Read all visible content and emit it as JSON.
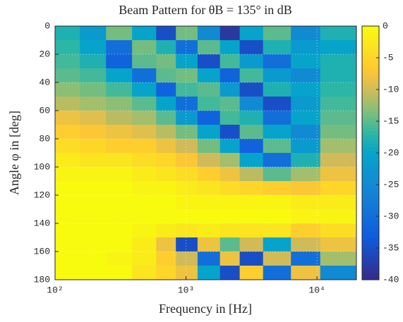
{
  "chart_data": {
    "type": "heatmap",
    "title": "Beam Pattern for θB = 135° in dB",
    "xlabel": "Frequency in [Hz]",
    "ylabel": "Angle φ in [deg]",
    "xscale": "log",
    "xlim": [
      100,
      20000
    ],
    "xticks": [
      {
        "value": 100,
        "label": "10²"
      },
      {
        "value": 1000,
        "label": "10³"
      },
      {
        "value": 10000,
        "label": "10⁴"
      }
    ],
    "ylim": [
      180,
      0
    ],
    "yticks": [
      0,
      20,
      40,
      60,
      80,
      100,
      120,
      140,
      160,
      180
    ],
    "zlim": [
      -40,
      0
    ],
    "zticks": [
      0,
      -5,
      -10,
      -15,
      -20,
      -25,
      -30,
      -35,
      -40
    ],
    "colormap": "parula",
    "grid": true,
    "x": [
      120,
      200,
      300,
      500,
      700,
      1000,
      1500,
      2200,
      3000,
      5000,
      8000,
      14000
    ],
    "y": [
      5,
      15,
      25,
      35,
      45,
      55,
      65,
      75,
      85,
      95,
      105,
      115,
      125,
      135,
      145,
      155,
      165,
      175
    ],
    "values": [
      [
        -18,
        -22,
        -14,
        -20,
        -35,
        -14,
        -25,
        -38,
        -20,
        -15,
        -25,
        -18
      ],
      [
        -17,
        -20,
        -30,
        -14,
        -18,
        -30,
        -15,
        -20,
        -35,
        -18,
        -22,
        -20
      ],
      [
        -16,
        -18,
        -32,
        -15,
        -14,
        -20,
        -35,
        -16,
        -22,
        -30,
        -20,
        -18
      ],
      [
        -15,
        -16,
        -20,
        -30,
        -15,
        -14,
        -20,
        -32,
        -16,
        -22,
        -25,
        -18
      ],
      [
        -13,
        -14,
        -16,
        -20,
        -32,
        -16,
        -15,
        -22,
        -35,
        -18,
        -20,
        -17
      ],
      [
        -11,
        -12,
        -13,
        -15,
        -20,
        -30,
        -16,
        -15,
        -25,
        -35,
        -22,
        -16
      ],
      [
        -8,
        -9,
        -11,
        -12,
        -15,
        -22,
        -32,
        -16,
        -18,
        -30,
        -20,
        -15
      ],
      [
        -6,
        -7,
        -8,
        -9,
        -11,
        -14,
        -20,
        -35,
        -15,
        -20,
        -25,
        -14
      ],
      [
        -4,
        -5,
        -6,
        -6,
        -8,
        -10,
        -14,
        -20,
        -32,
        -15,
        -22,
        -12
      ],
      [
        -2,
        -3,
        -3,
        -4,
        -5,
        -7,
        -10,
        -12,
        -20,
        -30,
        -18,
        -10
      ],
      [
        -1,
        -1,
        -1,
        -2,
        -3,
        -4,
        -6,
        -8,
        -11,
        -15,
        -12,
        -8
      ],
      [
        0,
        0,
        0,
        -1,
        -1,
        -2,
        -3,
        -4,
        -5,
        -6,
        -7,
        -5
      ],
      [
        0,
        0,
        0,
        0,
        0,
        -1,
        -1,
        -1,
        -1,
        -1,
        -2,
        -2
      ],
      [
        0,
        0,
        0,
        0,
        0,
        0,
        0,
        0,
        0,
        0,
        -1,
        -1
      ],
      [
        0,
        0,
        0,
        -1,
        -2,
        -3,
        -2,
        -3,
        -3,
        -3,
        -6,
        -4
      ],
      [
        0,
        0,
        0,
        -2,
        -8,
        -35,
        -8,
        -15,
        -10,
        -20,
        -10,
        -8
      ],
      [
        0,
        0,
        -1,
        -2,
        -6,
        -10,
        -30,
        -8,
        -35,
        -10,
        -30,
        -12
      ],
      [
        0,
        0,
        0,
        -3,
        -5,
        -8,
        -20,
        -35,
        -6,
        -30,
        -8,
        -25
      ]
    ]
  }
}
